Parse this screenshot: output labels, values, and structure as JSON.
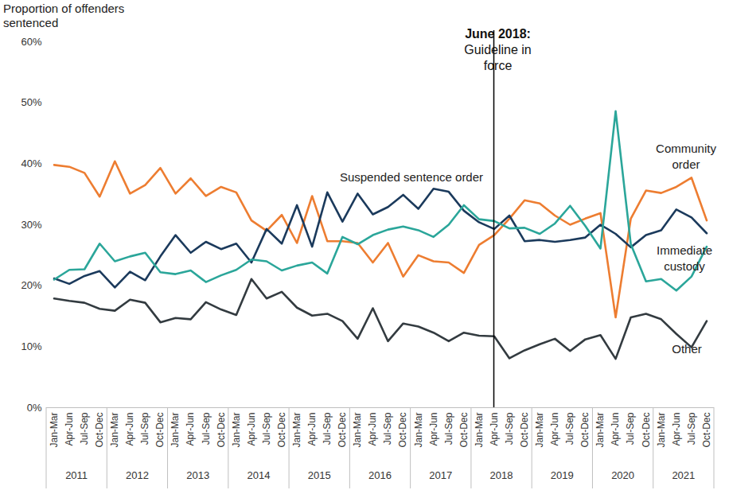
{
  "chart_data": {
    "type": "line",
    "y_label": "Proportion of offenders sentenced",
    "categories": [
      "Jan-Mar",
      "Apr-Jun",
      "Jul-Sep",
      "Oct-Dec",
      "Jan-Mar",
      "Apr-Jun",
      "Jul-Sep",
      "Oct-Dec",
      "Jan-Mar",
      "Apr-Jun",
      "Jul-Sep",
      "Oct-Dec",
      "Jan-Mar",
      "Apr-Jun",
      "Jul-Sep",
      "Oct-Dec",
      "Jan-Mar",
      "Apr-Jun",
      "Jul-Sep",
      "Oct-Dec",
      "Jan-Mar",
      "Apr-Jun",
      "Jul-Sep",
      "Oct-Dec",
      "Jan-Mar",
      "Apr-Jun",
      "Jul-Sep",
      "Oct-Dec",
      "Jan-Mar",
      "Apr-Jun",
      "Jul-Sep",
      "Oct-Dec",
      "Jan-Mar",
      "Apr-Jun",
      "Jul-Sep",
      "Oct-Dec",
      "Jan-Mar",
      "Apr-Jun",
      "Jul-Sep",
      "Oct-Dec",
      "Jan-Mar",
      "Apr-Jun",
      "Jul-Sep",
      "Oct-Dec"
    ],
    "years": [
      2011,
      2012,
      2013,
      2014,
      2015,
      2016,
      2017,
      2018,
      2019,
      2020,
      2021
    ],
    "series": [
      {
        "name": "Community order",
        "color": "#ED7D31",
        "values": [
          39.8,
          39.5,
          38.5,
          34.6,
          40.4,
          35.1,
          36.5,
          39.3,
          35.1,
          37.6,
          34.7,
          36.2,
          35.3,
          30.7,
          29.0,
          31.6,
          27.0,
          34.7,
          27.3,
          27.3,
          27.0,
          23.8,
          27.0,
          21.5,
          25.0,
          24.0,
          23.8,
          22.1,
          26.7,
          28.3,
          31.0,
          34.0,
          33.5,
          31.5,
          30.0,
          31.0,
          31.9,
          14.8,
          31.0,
          35.6,
          35.2,
          36.2,
          37.7,
          30.7
        ]
      },
      {
        "name": "Suspended sentence order",
        "color": "#1B3A5C",
        "values": [
          21.2,
          20.3,
          21.6,
          22.4,
          19.7,
          22.3,
          20.9,
          24.8,
          28.3,
          25.4,
          27.2,
          26.0,
          26.9,
          23.8,
          29.3,
          26.9,
          33.2,
          26.4,
          35.3,
          30.5,
          35.1,
          31.7,
          32.9,
          34.9,
          32.6,
          35.9,
          35.4,
          32.3,
          30.4,
          29.3,
          31.5,
          27.3,
          27.5,
          27.2,
          27.5,
          27.9,
          30.0,
          28.5,
          26.3,
          28.3,
          29.1,
          32.5,
          31.2,
          28.6
        ]
      },
      {
        "name": "Immediate custody",
        "color": "#2BA69A",
        "values": [
          21.0,
          22.6,
          22.7,
          26.9,
          24.0,
          24.8,
          25.4,
          22.2,
          21.9,
          22.5,
          20.6,
          21.7,
          22.6,
          24.3,
          24.0,
          22.5,
          23.3,
          23.8,
          22.0,
          28.0,
          26.8,
          28.3,
          29.2,
          29.7,
          29.1,
          28.0,
          30.0,
          33.2,
          30.9,
          30.6,
          29.4,
          29.5,
          28.5,
          30.2,
          33.1,
          29.8,
          26.1,
          48.6,
          26.8,
          20.7,
          21.1,
          19.2,
          21.5,
          26.4
        ]
      },
      {
        "name": "Other",
        "color": "#333B40",
        "values": [
          17.9,
          17.5,
          17.2,
          16.2,
          15.9,
          17.7,
          17.2,
          14.0,
          14.7,
          14.5,
          17.3,
          16.1,
          15.2,
          21.1,
          17.9,
          19.0,
          16.4,
          15.1,
          15.4,
          14.2,
          11.3,
          16.3,
          10.9,
          13.8,
          13.3,
          12.3,
          10.9,
          12.3,
          11.8,
          11.7,
          8.1,
          9.4,
          10.4,
          11.3,
          9.3,
          11.2,
          11.9,
          8.0,
          14.8,
          15.4,
          14.5,
          12.1,
          9.9,
          14.2
        ]
      }
    ],
    "ylim": [
      0,
      60
    ],
    "yticks": [
      {
        "value": 0,
        "label": "0%"
      },
      {
        "value": 10,
        "label": "10%"
      },
      {
        "value": 20,
        "label": "20%"
      },
      {
        "value": 30,
        "label": "30%"
      },
      {
        "value": 40,
        "label": "40%"
      },
      {
        "value": 50,
        "label": "50%"
      },
      {
        "value": 60,
        "label": "60%"
      }
    ],
    "grid": false,
    "annotations": [
      {
        "at": 29,
        "bold": "June 2018:",
        "text": "Guideline in force"
      }
    ]
  }
}
